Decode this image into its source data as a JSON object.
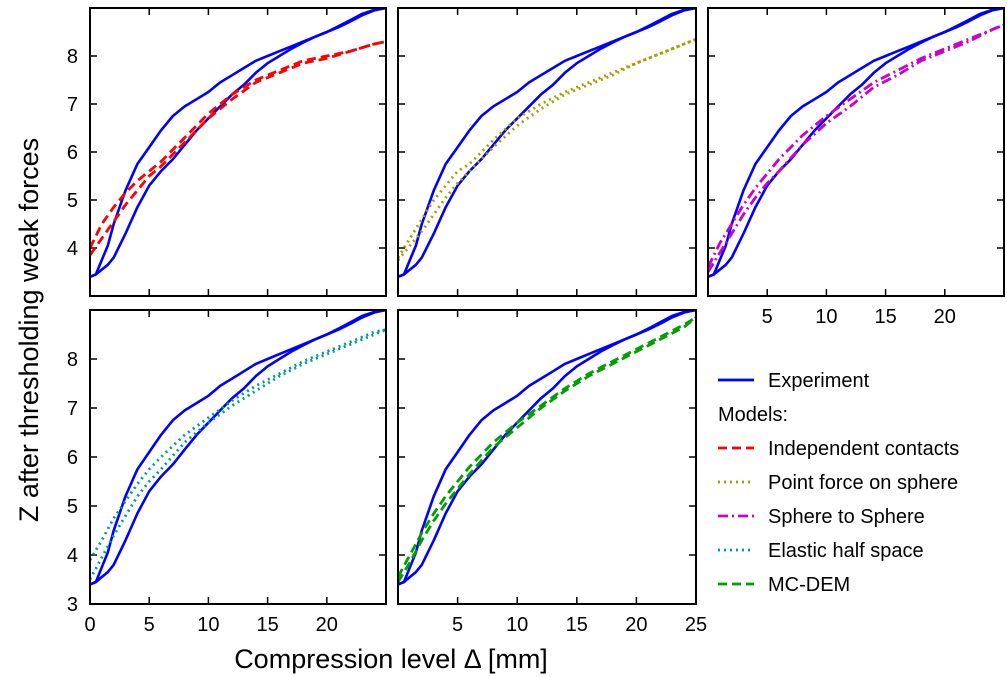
{
  "chart_data": {
    "type": "line",
    "xlabel": "Compression level Δ [mm]",
    "ylabel": "Z after thresholding weak forces",
    "xlim": [
      0,
      25
    ],
    "ylim": [
      3,
      9
    ],
    "grid": false,
    "legend_position": "bottom-right",
    "legend": {
      "entries": [
        {
          "label": "Experiment",
          "color": "#0000ff",
          "dash": "solid"
        },
        {
          "label": "Models:",
          "is_header": true
        },
        {
          "label": "Independent contacts",
          "color": "#ff0000",
          "dash": "dashed"
        },
        {
          "label": "Point force on sphere",
          "color": "#a0a000",
          "dash": "dotted"
        },
        {
          "label": "Sphere to Sphere",
          "color": "#cc00cc",
          "dash": "dashdot"
        },
        {
          "label": "Elastic half space",
          "color": "#009999",
          "dash": "dotted"
        },
        {
          "label": "MC-DEM",
          "color": "#00a000",
          "dash": "dashed"
        }
      ]
    },
    "experiment": {
      "name": "Experiment",
      "color": "#0000ff",
      "branches": [
        {
          "x": [
            0,
            0.5,
            1,
            1.5,
            2,
            3,
            4,
            5,
            6,
            7,
            8,
            9,
            10,
            11,
            12,
            13,
            14,
            15,
            16,
            17,
            18,
            19,
            20,
            21,
            22,
            23,
            24,
            25
          ],
          "y": [
            3.4,
            3.45,
            3.75,
            4.05,
            4.5,
            5.2,
            5.75,
            6.1,
            6.45,
            6.75,
            6.95,
            7.1,
            7.25,
            7.45,
            7.6,
            7.75,
            7.9,
            8.0,
            8.1,
            8.2,
            8.3,
            8.4,
            8.5,
            8.6,
            8.72,
            8.85,
            8.95,
            9.0
          ]
        },
        {
          "x": [
            0,
            0.5,
            1,
            1.5,
            2,
            3,
            4,
            5,
            6,
            7,
            8,
            9,
            10,
            11,
            12,
            13,
            14,
            15,
            16,
            17,
            18,
            19,
            20,
            21,
            22,
            23,
            24,
            25
          ],
          "y": [
            3.4,
            3.45,
            3.55,
            3.65,
            3.8,
            4.3,
            4.85,
            5.3,
            5.6,
            5.85,
            6.15,
            6.45,
            6.7,
            6.95,
            7.2,
            7.4,
            7.65,
            7.85,
            8.0,
            8.15,
            8.28,
            8.4,
            8.5,
            8.62,
            8.75,
            8.88,
            8.96,
            9.0
          ]
        }
      ]
    },
    "panels": [
      {
        "model": "Independent contacts",
        "color": "#ff0000",
        "dash": "dashed",
        "show_x_ticklabels": false,
        "show_y_ticklabels": true,
        "branches": [
          {
            "x": [
              0,
              1,
              2,
              3,
              4,
              5,
              6,
              8,
              10,
              12,
              14,
              16,
              18,
              20,
              22,
              24,
              25
            ],
            "y": [
              4.0,
              4.5,
              4.85,
              5.15,
              5.4,
              5.6,
              5.8,
              6.3,
              6.8,
              7.2,
              7.5,
              7.7,
              7.9,
              8.0,
              8.1,
              8.25,
              8.3
            ]
          },
          {
            "x": [
              0,
              1,
              2,
              3,
              4,
              5,
              6,
              8,
              10,
              12,
              14,
              16,
              18,
              20,
              22,
              24,
              25
            ],
            "y": [
              3.85,
              4.2,
              4.55,
              4.9,
              5.2,
              5.5,
              5.7,
              6.2,
              6.7,
              7.1,
              7.45,
              7.65,
              7.85,
              7.95,
              8.1,
              8.25,
              8.3
            ]
          }
        ]
      },
      {
        "model": "Point force on sphere",
        "color": "#a0a000",
        "dash": "dotted",
        "show_x_ticklabels": false,
        "show_y_ticklabels": false,
        "branches": [
          {
            "x": [
              0,
              1,
              2,
              3,
              4,
              5,
              6,
              8,
              10,
              12,
              14,
              16,
              18,
              20,
              22,
              24,
              25
            ],
            "y": [
              3.8,
              4.2,
              4.6,
              5.0,
              5.3,
              5.6,
              5.75,
              6.25,
              6.7,
              7.0,
              7.25,
              7.45,
              7.65,
              7.85,
              8.05,
              8.25,
              8.35
            ]
          },
          {
            "x": [
              0,
              1,
              2,
              3,
              4,
              5,
              6,
              8,
              10,
              12,
              14,
              16,
              18,
              20,
              22,
              24,
              25
            ],
            "y": [
              3.75,
              4.05,
              4.35,
              4.7,
              5.05,
              5.35,
              5.6,
              6.1,
              6.55,
              6.9,
              7.2,
              7.4,
              7.6,
              7.85,
              8.05,
              8.25,
              8.35
            ]
          }
        ]
      },
      {
        "model": "Sphere to Sphere",
        "color": "#cc00cc",
        "dash": "dashdot",
        "show_x_ticklabels": true,
        "show_y_ticklabels": false,
        "branches": [
          {
            "x": [
              0,
              1,
              2,
              3,
              4,
              5,
              6,
              8,
              10,
              12,
              14,
              16,
              18,
              20,
              22,
              24,
              25
            ],
            "y": [
              3.6,
              4.1,
              4.5,
              4.9,
              5.25,
              5.55,
              5.85,
              6.35,
              6.75,
              7.1,
              7.45,
              7.7,
              7.95,
              8.15,
              8.35,
              8.55,
              8.65
            ]
          },
          {
            "x": [
              0,
              1,
              2,
              3,
              4,
              5,
              6,
              8,
              10,
              12,
              14,
              16,
              18,
              20,
              22,
              24,
              25
            ],
            "y": [
              3.5,
              3.9,
              4.3,
              4.7,
              5.05,
              5.35,
              5.6,
              6.15,
              6.6,
              6.95,
              7.35,
              7.6,
              7.9,
              8.1,
              8.3,
              8.55,
              8.65
            ]
          }
        ]
      },
      {
        "model": "Elastic half space",
        "color": "#009999",
        "dash": "dotted",
        "show_x_ticklabels": true,
        "show_y_ticklabels": true,
        "branches": [
          {
            "x": [
              0,
              1,
              2,
              3,
              4,
              5,
              6,
              8,
              10,
              12,
              14,
              16,
              18,
              20,
              22,
              24,
              25
            ],
            "y": [
              3.9,
              4.3,
              4.75,
              5.1,
              5.45,
              5.75,
              6.0,
              6.45,
              6.8,
              7.15,
              7.45,
              7.7,
              7.95,
              8.15,
              8.35,
              8.55,
              8.6
            ]
          },
          {
            "x": [
              0,
              1,
              2,
              3,
              4,
              5,
              6,
              8,
              10,
              12,
              14,
              16,
              18,
              20,
              22,
              24,
              25
            ],
            "y": [
              3.5,
              3.95,
              4.4,
              4.8,
              5.2,
              5.5,
              5.75,
              6.3,
              6.7,
              7.05,
              7.35,
              7.65,
              7.9,
              8.1,
              8.3,
              8.5,
              8.6
            ]
          }
        ]
      },
      {
        "model": "MC-DEM",
        "color": "#00a000",
        "dash": "dashed",
        "show_x_ticklabels": true,
        "show_y_ticklabels": false,
        "branches": [
          {
            "x": [
              0,
              1,
              2,
              3,
              4,
              5,
              6,
              8,
              10,
              12,
              14,
              16,
              18,
              20,
              22,
              24,
              25
            ],
            "y": [
              3.55,
              4.0,
              4.45,
              4.85,
              5.2,
              5.5,
              5.8,
              6.3,
              6.7,
              7.05,
              7.4,
              7.7,
              7.95,
              8.2,
              8.45,
              8.7,
              8.85
            ]
          },
          {
            "x": [
              0,
              1,
              2,
              3,
              4,
              5,
              6,
              8,
              10,
              12,
              14,
              16,
              18,
              20,
              22,
              24,
              25
            ],
            "y": [
              3.45,
              3.85,
              4.3,
              4.7,
              5.05,
              5.35,
              5.65,
              6.2,
              6.6,
              7.0,
              7.35,
              7.65,
              7.9,
              8.15,
              8.4,
              8.65,
              8.85
            ]
          }
        ]
      }
    ],
    "x_ticks": {
      "labels_bottom_left": [
        "0",
        "5",
        "10",
        "15",
        "20"
      ],
      "labels_bottom_middle": [
        "5",
        "10",
        "15",
        "20",
        "25"
      ],
      "labels_top_right": [
        "5",
        "10",
        "15",
        "20"
      ]
    },
    "y_ticks": {
      "labels_top": [
        "4",
        "5",
        "6",
        "7",
        "8"
      ],
      "labels_bottom": [
        "3",
        "4",
        "5",
        "6",
        "7",
        "8"
      ]
    }
  }
}
